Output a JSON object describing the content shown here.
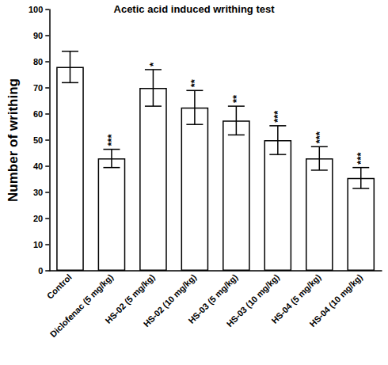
{
  "chart_data": {
    "type": "bar",
    "title": "Acetic acid induced writhing test",
    "y_label": "Number of writhing",
    "categories": [
      "Control",
      "Diclofenac (5 mg/kg)",
      "HS-02 (5 mg/kg)",
      "HS-02 (10 mg/kg)",
      "HS-03 (5 mg/kg)",
      "HS-03 (10 mg/kg)",
      "HS-04 (5 mg/kg)",
      "HS-04 (10 mg/kg)"
    ],
    "values": [
      78,
      43,
      70,
      62.5,
      57.5,
      50,
      43,
      35.5
    ],
    "errors": [
      6,
      3.5,
      7,
      6.5,
      5.5,
      5.5,
      4.5,
      4
    ],
    "annotations": [
      null,
      "***",
      "*",
      "**",
      "**",
      "***",
      "***",
      "***"
    ],
    "color": "#ffffff",
    "ylim": [
      0,
      100
    ],
    "yticks": [
      0,
      10,
      20,
      30,
      40,
      50,
      60,
      70,
      80,
      90,
      100
    ],
    "grid": false
  }
}
